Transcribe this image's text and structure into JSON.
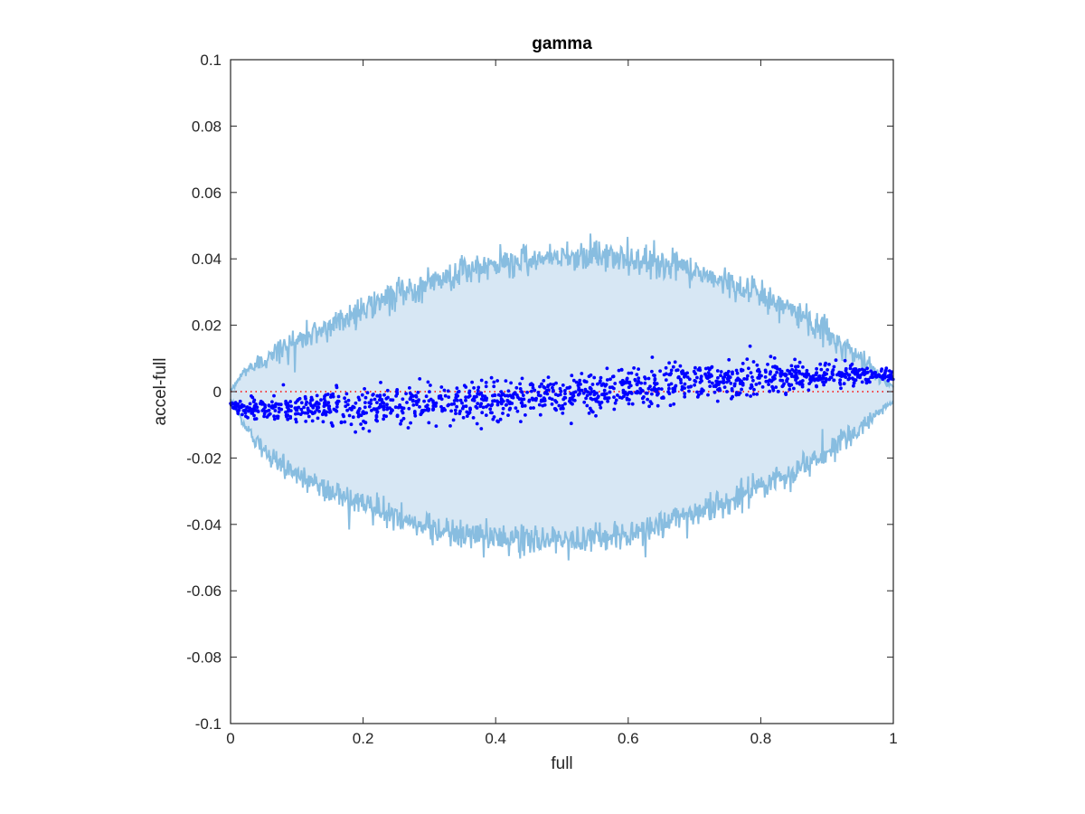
{
  "chart_data": {
    "type": "scatter",
    "title": "gamma",
    "xlabel": "full",
    "ylabel": "accel-full",
    "xlim": [
      0,
      1
    ],
    "ylim": [
      -0.1,
      0.1
    ],
    "xticks": [
      0,
      0.2,
      0.4,
      0.6,
      0.8,
      1
    ],
    "xtick_labels": [
      "0",
      "0.2",
      "0.4",
      "0.6",
      "0.8",
      "1"
    ],
    "yticks": [
      0.1,
      0.08,
      0.06,
      0.04,
      0.02,
      0,
      -0.02,
      -0.04,
      -0.06,
      -0.08,
      -0.1
    ],
    "ytick_labels": [
      "0.1",
      "0.08",
      "0.06",
      "0.04",
      "0.02",
      "0",
      "-0.02",
      "-0.04",
      "-0.06",
      "-0.08",
      "-0.1"
    ],
    "grid": false,
    "reference_line": {
      "y": 0,
      "style": "dotted",
      "color": "#ff0000"
    },
    "band": {
      "description": "upper and lower envelope (noisy), shaded between",
      "fill_color": "#d7e7f4",
      "line_color": "#88bde0",
      "upper": {
        "x": [
          0,
          0.02,
          0.05,
          0.1,
          0.15,
          0.2,
          0.25,
          0.3,
          0.35,
          0.4,
          0.45,
          0.5,
          0.55,
          0.6,
          0.65,
          0.7,
          0.75,
          0.8,
          0.85,
          0.9,
          0.95,
          0.98,
          1
        ],
        "y": [
          0,
          0.006,
          0.01,
          0.015,
          0.02,
          0.025,
          0.029,
          0.033,
          0.036,
          0.038,
          0.04,
          0.041,
          0.041,
          0.04,
          0.039,
          0.036,
          0.033,
          0.029,
          0.024,
          0.018,
          0.01,
          0.005,
          0.001
        ]
      },
      "lower": {
        "x": [
          0,
          0.02,
          0.05,
          0.1,
          0.15,
          0.2,
          0.25,
          0.3,
          0.35,
          0.4,
          0.45,
          0.5,
          0.55,
          0.6,
          0.65,
          0.7,
          0.75,
          0.8,
          0.85,
          0.9,
          0.95,
          0.98,
          1
        ],
        "y": [
          -0.002,
          -0.01,
          -0.018,
          -0.025,
          -0.03,
          -0.034,
          -0.038,
          -0.041,
          -0.043,
          -0.044,
          -0.045,
          -0.045,
          -0.044,
          -0.043,
          -0.04,
          -0.037,
          -0.033,
          -0.029,
          -0.024,
          -0.018,
          -0.011,
          -0.006,
          -0.003
        ]
      },
      "noise_amplitude": 0.004
    },
    "series": [
      {
        "color": "#0000ff",
        "marker": "dot",
        "count": 1300,
        "trend": {
          "x": [
            0,
            0.1,
            0.2,
            0.3,
            0.4,
            0.5,
            0.6,
            0.7,
            0.8,
            0.9,
            1
          ],
          "y": [
            -0.005,
            -0.005,
            -0.005,
            -0.004,
            -0.003,
            -0.001,
            0.001,
            0.003,
            0.004,
            0.005,
            0.005
          ]
        },
        "spread": {
          "x": [
            0,
            0.1,
            0.2,
            0.3,
            0.4,
            0.5,
            0.6,
            0.7,
            0.8,
            0.9,
            1
          ],
          "y": [
            0.001,
            0.002,
            0.003,
            0.003,
            0.003,
            0.003,
            0.003,
            0.003,
            0.0025,
            0.002,
            0.001
          ]
        }
      }
    ]
  }
}
